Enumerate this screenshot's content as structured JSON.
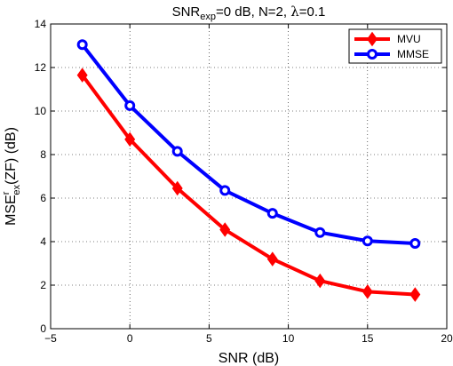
{
  "chart_data": {
    "type": "line",
    "title": {
      "prefix": "SNR",
      "subscript": "exp",
      "rest": "=0 dB, N=2, ",
      "lambda": "λ",
      "lambda_value": "=0.1"
    },
    "xlabel": "SNR (dB)",
    "ylabel": {
      "base": "MSE",
      "superscript": "r",
      "subscript": "ex",
      "suffix": "(ZF) (dB)"
    },
    "xlim": [
      -5,
      20
    ],
    "ylim": [
      0,
      14
    ],
    "xticks": [
      -5,
      0,
      5,
      10,
      15,
      20
    ],
    "yticks": [
      0,
      2,
      4,
      6,
      8,
      10,
      12,
      14
    ],
    "grid": true,
    "legend_position": "top-right",
    "x": [
      -3,
      0,
      3,
      6,
      9,
      12,
      15,
      18
    ],
    "series": [
      {
        "name": "MVU",
        "color": "#ff0000",
        "marker": "diamond",
        "values": [
          11.65,
          8.7,
          6.45,
          4.55,
          3.2,
          2.2,
          1.7,
          1.57
        ]
      },
      {
        "name": "MMSE",
        "color": "#0000ff",
        "marker": "circle",
        "values": [
          13.05,
          10.25,
          8.15,
          6.35,
          5.3,
          4.42,
          4.03,
          3.92
        ]
      }
    ]
  }
}
